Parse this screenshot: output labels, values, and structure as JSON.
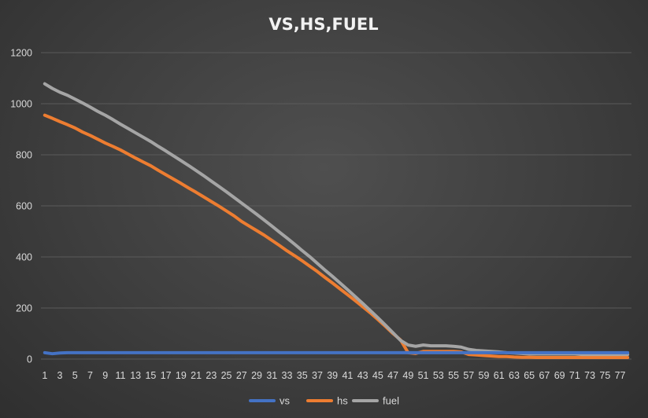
{
  "chart_data": {
    "type": "line",
    "title": "VS,HS,FUEL",
    "xlabel": "",
    "ylabel": "",
    "ylim": [
      0,
      1200
    ],
    "yticks": [
      0,
      200,
      400,
      600,
      800,
      1000,
      1200
    ],
    "xtick_labels": [
      "1",
      "3",
      "5",
      "7",
      "9",
      "11",
      "13",
      "15",
      "17",
      "19",
      "21",
      "23",
      "25",
      "27",
      "29",
      "31",
      "33",
      "35",
      "37",
      "39",
      "41",
      "43",
      "45",
      "47",
      "49",
      "51",
      "53",
      "55",
      "57",
      "59",
      "61",
      "63",
      "65",
      "67",
      "69",
      "71",
      "73",
      "75",
      "77"
    ],
    "grid": "horizontal",
    "legend_position": "bottom",
    "x": [
      1,
      2,
      3,
      4,
      5,
      6,
      7,
      8,
      9,
      10,
      11,
      12,
      13,
      14,
      15,
      16,
      17,
      18,
      19,
      20,
      21,
      22,
      23,
      24,
      25,
      26,
      27,
      28,
      29,
      30,
      31,
      32,
      33,
      34,
      35,
      36,
      37,
      38,
      39,
      40,
      41,
      42,
      43,
      44,
      45,
      46,
      47,
      48,
      49,
      50,
      51,
      52,
      53,
      54,
      55,
      56,
      57,
      58,
      59,
      60,
      61,
      62,
      63,
      64,
      65,
      66,
      67,
      68,
      69,
      70,
      71,
      72,
      73,
      74,
      75,
      76,
      77,
      78
    ],
    "series": [
      {
        "name": "vs",
        "color": "#4472C4",
        "values": [
          25,
          21,
          24,
          25,
          25,
          25,
          25,
          25,
          25,
          25,
          25,
          25,
          25,
          25,
          25,
          25,
          25,
          25,
          25,
          25,
          25,
          25,
          25,
          25,
          25,
          25,
          25,
          25,
          25,
          25,
          25,
          25,
          25,
          25,
          25,
          25,
          25,
          25,
          25,
          25,
          25,
          25,
          25,
          25,
          25,
          25,
          25,
          25,
          25,
          25,
          25,
          25,
          25,
          25,
          25,
          25,
          25,
          25,
          25,
          25,
          25,
          25,
          25,
          25,
          25,
          25,
          25,
          25,
          25,
          25,
          25,
          25,
          25,
          25,
          25,
          25,
          25,
          25
        ]
      },
      {
        "name": "hs",
        "color": "#ED7D31",
        "values": [
          955,
          943,
          930,
          918,
          905,
          889,
          876,
          861,
          846,
          833,
          819,
          803,
          787,
          772,
          757,
          739,
          722,
          705,
          688,
          670,
          653,
          635,
          617,
          599,
          580,
          561,
          539,
          521,
          503,
          485,
          465,
          445,
          424,
          405,
          385,
          364,
          343,
          320,
          298,
          275,
          252,
          229,
          205,
          181,
          155,
          128,
          100,
          75,
          25,
          22,
          30,
          30,
          30,
          30,
          30,
          28,
          18,
          16,
          14,
          12,
          10,
          10,
          8,
          7,
          7,
          6,
          6,
          6,
          6,
          6,
          6,
          6,
          6,
          6,
          6,
          6,
          6,
          6
        ]
      },
      {
        "name": "fuel",
        "color": "#A5A5A5",
        "values": [
          1078,
          1060,
          1045,
          1033,
          1018,
          1003,
          987,
          970,
          955,
          938,
          920,
          903,
          886,
          869,
          852,
          833,
          815,
          796,
          777,
          758,
          738,
          718,
          697,
          676,
          655,
          633,
          611,
          589,
          567,
          544,
          521,
          497,
          474,
          450,
          425,
          401,
          375,
          349,
          324,
          298,
          272,
          245,
          218,
          190,
          162,
          133,
          103,
          73,
          55,
          50,
          55,
          52,
          52,
          52,
          50,
          47,
          38,
          34,
          32,
          30,
          28,
          25,
          24,
          22,
          20,
          20,
          20,
          20,
          20,
          20,
          20,
          18,
          18,
          18,
          18,
          18,
          18,
          18
        ]
      }
    ]
  }
}
